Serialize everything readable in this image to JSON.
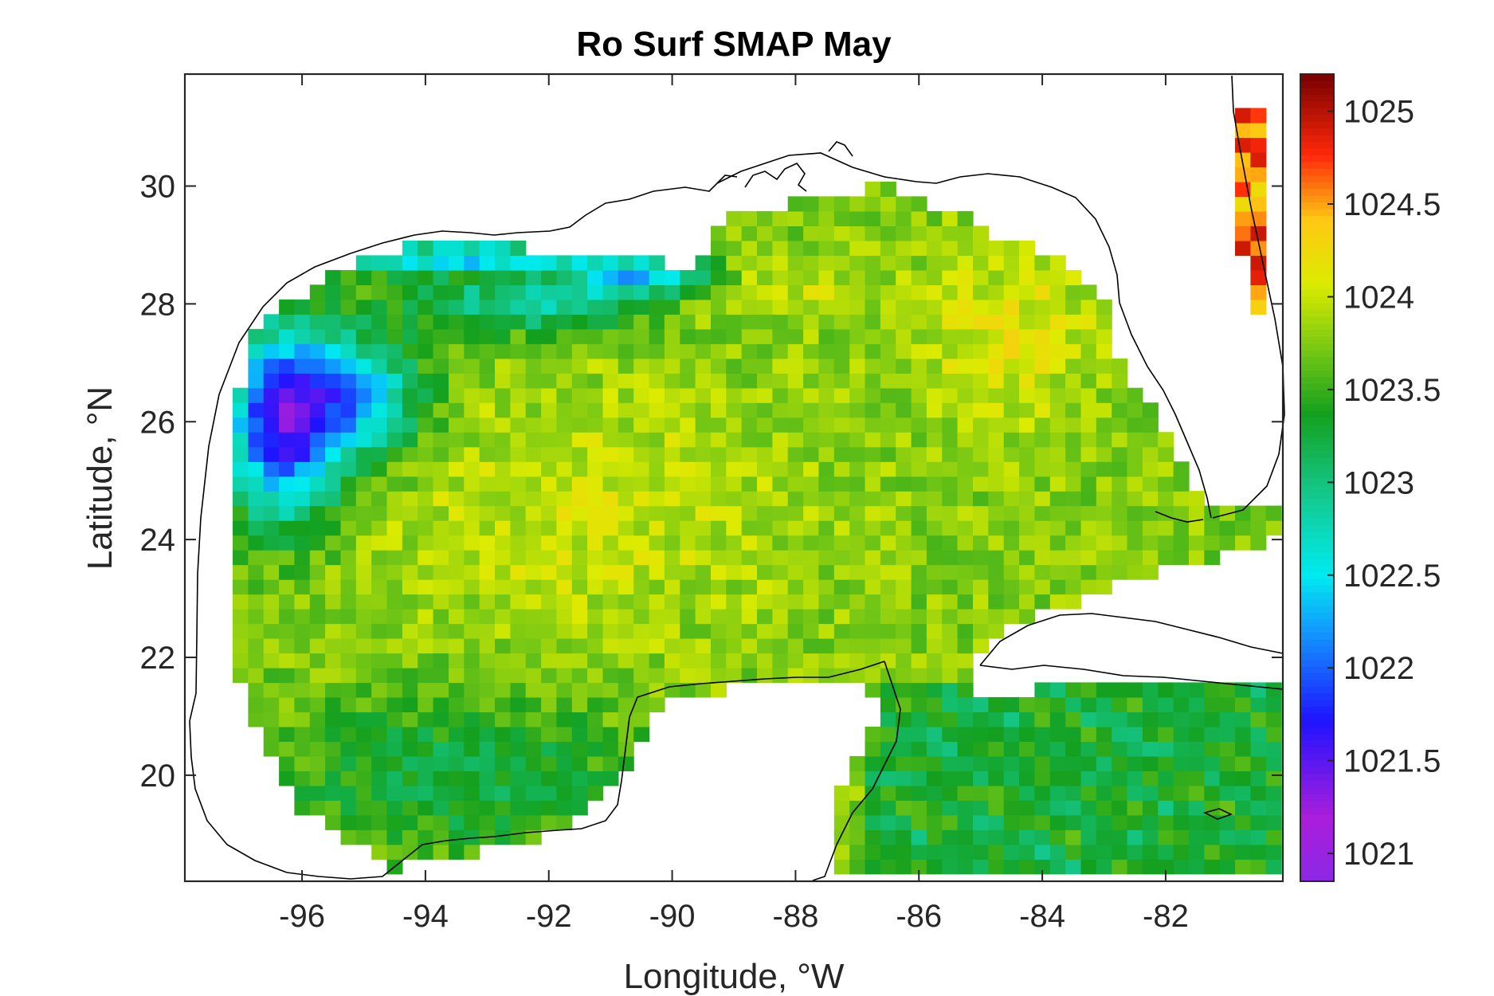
{
  "chart_data": {
    "type": "heatmap",
    "title": "Ro Surf SMAP May",
    "xlabel": "Longitude, °W",
    "ylabel": "Latitude, °N",
    "xlim": [
      -97.9,
      -80.1
    ],
    "ylim": [
      18.2,
      31.9
    ],
    "x_ticks": [
      -96,
      -94,
      -92,
      -90,
      -88,
      -86,
      -84,
      -82
    ],
    "x_tick_labels": [
      "-96",
      "-94",
      "-92",
      "-90",
      "-88",
      "-86",
      "-84",
      "-82"
    ],
    "y_ticks": [
      20,
      22,
      24,
      26,
      28,
      30
    ],
    "y_tick_labels": [
      "20",
      "22",
      "24",
      "26",
      "28",
      "30"
    ],
    "colorbar": {
      "range": [
        1020.85,
        1025.2
      ],
      "ticks": [
        1021,
        1021.5,
        1022,
        1022.5,
        1023,
        1023.5,
        1024,
        1024.5,
        1025
      ],
      "tick_labels": [
        "1021",
        "1021.5",
        "1022",
        "1022.5",
        "1023",
        "1023.5",
        "1024",
        "1024.5",
        "1025"
      ]
    },
    "grid_resolution_deg": 0.25,
    "field_summary": "gridded surface density (ocean-only cells); low values (~1021–1022.5) along Louisiana/Texas shelf, high (~1024–1025) near Mississippi/Florida shelf edge and Cuba north coast, ~1023.5–1024 in central Gulf, ~1023–1023.3 in Caribbean and Bay of Campeche"
  }
}
